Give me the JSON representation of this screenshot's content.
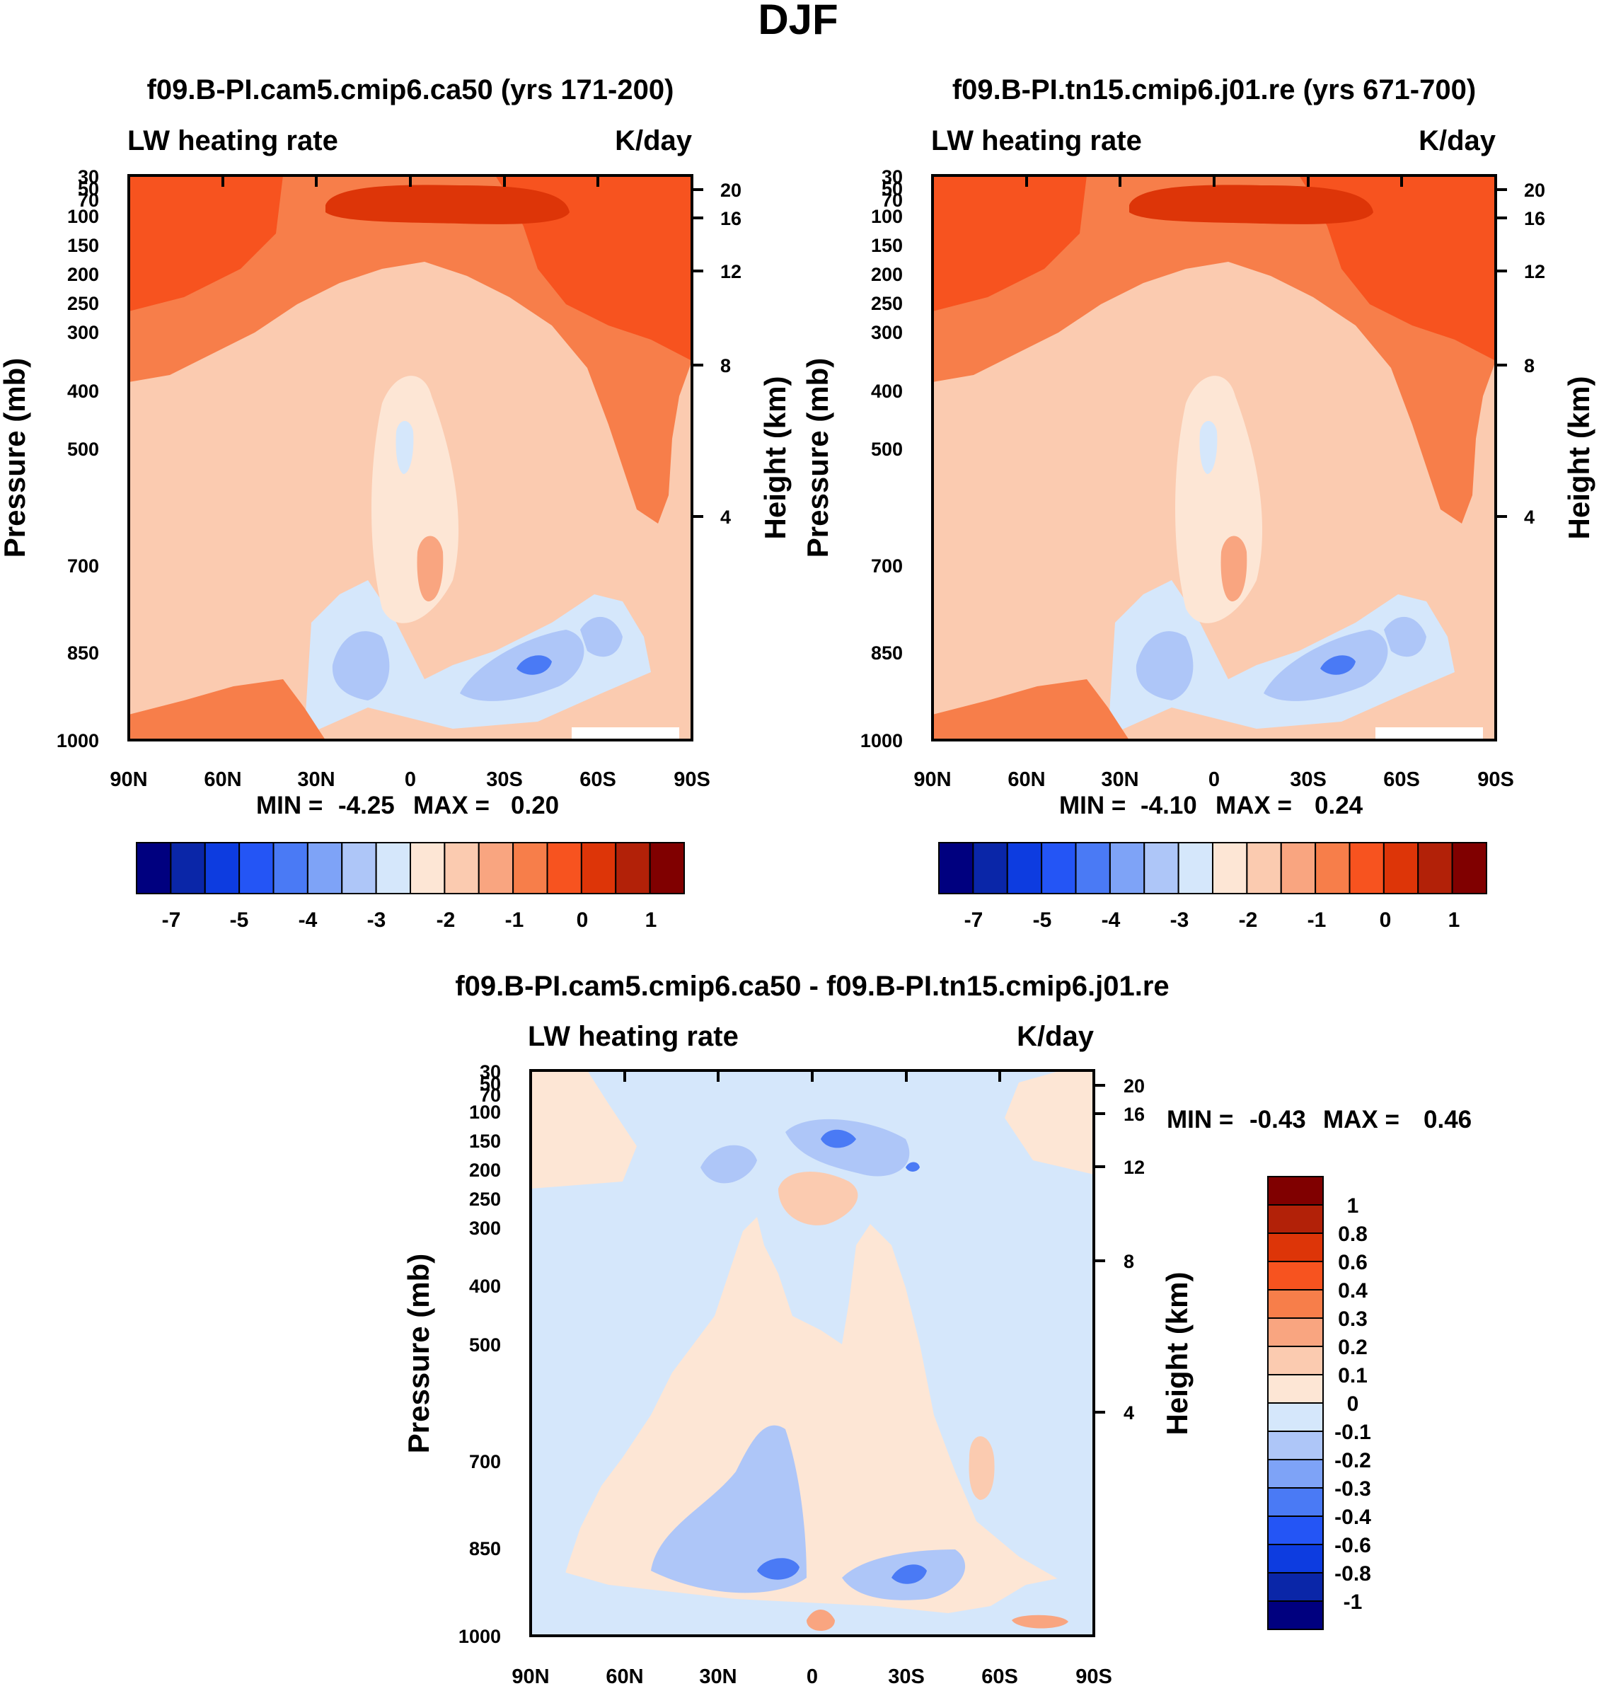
{
  "figure": {
    "title": "DJF"
  },
  "colors": {
    "abs_scale": [
      "#00007f",
      "#0a26a8",
      "#0d3ce0",
      "#2455f5",
      "#4a7af5",
      "#7ea3f7",
      "#aec6f8",
      "#d5e7fb",
      "#fde6d5",
      "#fbcbb0",
      "#f9a580",
      "#f77e4a",
      "#f7531f",
      "#dd3508",
      "#b22108",
      "#800000"
    ],
    "diff_scale": [
      "#00007f",
      "#0a26a8",
      "#0d3ce0",
      "#2455f5",
      "#4a7af5",
      "#7ea3f7",
      "#aec6f8",
      "#d5e7fb",
      "#fde6d5",
      "#fbcbb0",
      "#f9a580",
      "#f77e4a",
      "#f7531f",
      "#dd3508",
      "#b22108",
      "#800000"
    ]
  },
  "chart_data": [
    {
      "type": "heatmap",
      "title": "f09.B-PI.cam5.cmip6.ca50 (yrs 171-200)",
      "left_label": "LW heating rate",
      "right_label": "K/day",
      "ylabel": "Pressure (mb)",
      "ylabel_right": "Height (km)",
      "x_ticks": [
        "90N",
        "60N",
        "30N",
        "0",
        "30S",
        "60S",
        "90S"
      ],
      "y_ticks": [
        "30",
        "50",
        "70",
        "100",
        "150",
        "200",
        "250",
        "300",
        "400",
        "500",
        "700",
        "850",
        "1000"
      ],
      "height_ticks": [
        "20",
        "16",
        "12",
        "8",
        "4"
      ],
      "xlim": [
        90,
        -90
      ],
      "ylim": [
        1000,
        30
      ],
      "min_label": "MIN =",
      "min_value": "-4.25",
      "max_label": "MAX =",
      "max_value": "0.20",
      "colorbar": {
        "labels": [
          "-7",
          "-5",
          "-4",
          "-3",
          "-2",
          "-1",
          "0",
          "1"
        ]
      }
    },
    {
      "type": "heatmap",
      "title": "f09.B-PI.tn15.cmip6.j01.re (yrs 671-700)",
      "left_label": "LW heating rate",
      "right_label": "K/day",
      "ylabel": "Pressure (mb)",
      "ylabel_right": "Height (km)",
      "x_ticks": [
        "90N",
        "60N",
        "30N",
        "0",
        "30S",
        "60S",
        "90S"
      ],
      "y_ticks": [
        "30",
        "50",
        "70",
        "100",
        "150",
        "200",
        "250",
        "300",
        "400",
        "500",
        "700",
        "850",
        "1000"
      ],
      "height_ticks": [
        "20",
        "16",
        "12",
        "8",
        "4"
      ],
      "xlim": [
        90,
        -90
      ],
      "ylim": [
        1000,
        30
      ],
      "min_label": "MIN =",
      "min_value": "-4.10",
      "max_label": "MAX =",
      "max_value": "0.24",
      "colorbar": {
        "labels": [
          "-7",
          "-5",
          "-4",
          "-3",
          "-2",
          "-1",
          "0",
          "1"
        ]
      }
    },
    {
      "type": "heatmap",
      "title": "f09.B-PI.cam5.cmip6.ca50 - f09.B-PI.tn15.cmip6.j01.re",
      "left_label": "LW heating rate",
      "right_label": "K/day",
      "ylabel": "Pressure (mb)",
      "ylabel_right": "Height (km)",
      "x_ticks": [
        "90N",
        "60N",
        "30N",
        "0",
        "30S",
        "60S",
        "90S"
      ],
      "y_ticks": [
        "30",
        "50",
        "70",
        "100",
        "150",
        "200",
        "250",
        "300",
        "400",
        "500",
        "700",
        "850",
        "1000"
      ],
      "height_ticks": [
        "20",
        "16",
        "12",
        "8",
        "4"
      ],
      "xlim": [
        90,
        -90
      ],
      "ylim": [
        1000,
        30
      ],
      "min_label": "MIN =",
      "min_value": "-0.43",
      "max_label": "MAX =",
      "max_value": "0.46",
      "colorbar": {
        "labels": [
          "1",
          "0.8",
          "0.6",
          "0.4",
          "0.3",
          "0.2",
          "0.1",
          "0",
          "-0.1",
          "-0.2",
          "-0.3",
          "-0.4",
          "-0.6",
          "-0.8",
          "-1"
        ]
      }
    }
  ]
}
